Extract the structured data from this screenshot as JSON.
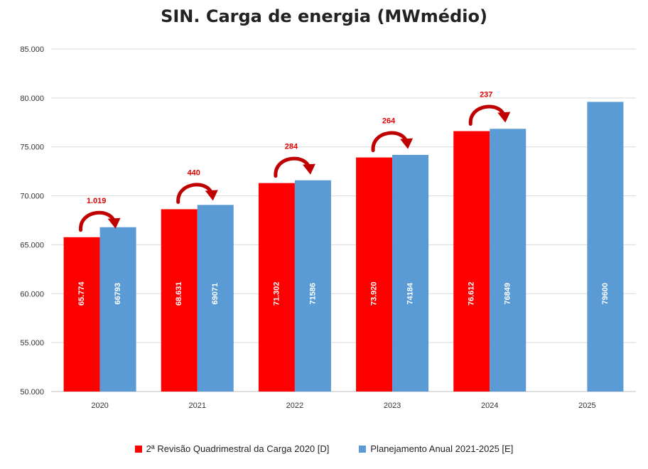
{
  "chart_data": {
    "type": "bar",
    "title": "SIN. Carga de energia (MWmédio)",
    "categories": [
      "2020",
      "2021",
      "2022",
      "2023",
      "2024",
      "2025"
    ],
    "ylim": [
      50000,
      85000
    ],
    "yticks": [
      50000,
      55000,
      60000,
      65000,
      70000,
      75000,
      80000,
      85000
    ],
    "ytick_labels": [
      "50.000",
      "55.000",
      "60.000",
      "65.000",
      "70.000",
      "75.000",
      "80.000",
      "85.000"
    ],
    "grid": true,
    "legend_position": "bottom",
    "series": [
      {
        "name": "2ª Revisão Quadrimestral da Carga 2020 [D]",
        "color": "#ff0000",
        "values": [
          65774,
          68631,
          71302,
          73920,
          76612,
          null
        ],
        "labels": [
          "65.774",
          "68.631",
          "71.302",
          "73.920",
          "76.612",
          ""
        ]
      },
      {
        "name": "Planejamento Anual 2021-2025 [E]",
        "color": "#5b9bd5",
        "values": [
          66793,
          69071,
          71586,
          74184,
          76849,
          79600
        ],
        "labels": [
          "66793",
          "69071",
          "71586",
          "74184",
          "76849",
          "79600"
        ]
      }
    ],
    "annotations": [
      {
        "category": "2020",
        "text": "1.019"
      },
      {
        "category": "2021",
        "text": "440"
      },
      {
        "category": "2022",
        "text": "284"
      },
      {
        "category": "2023",
        "text": "264"
      },
      {
        "category": "2024",
        "text": "237"
      }
    ]
  }
}
